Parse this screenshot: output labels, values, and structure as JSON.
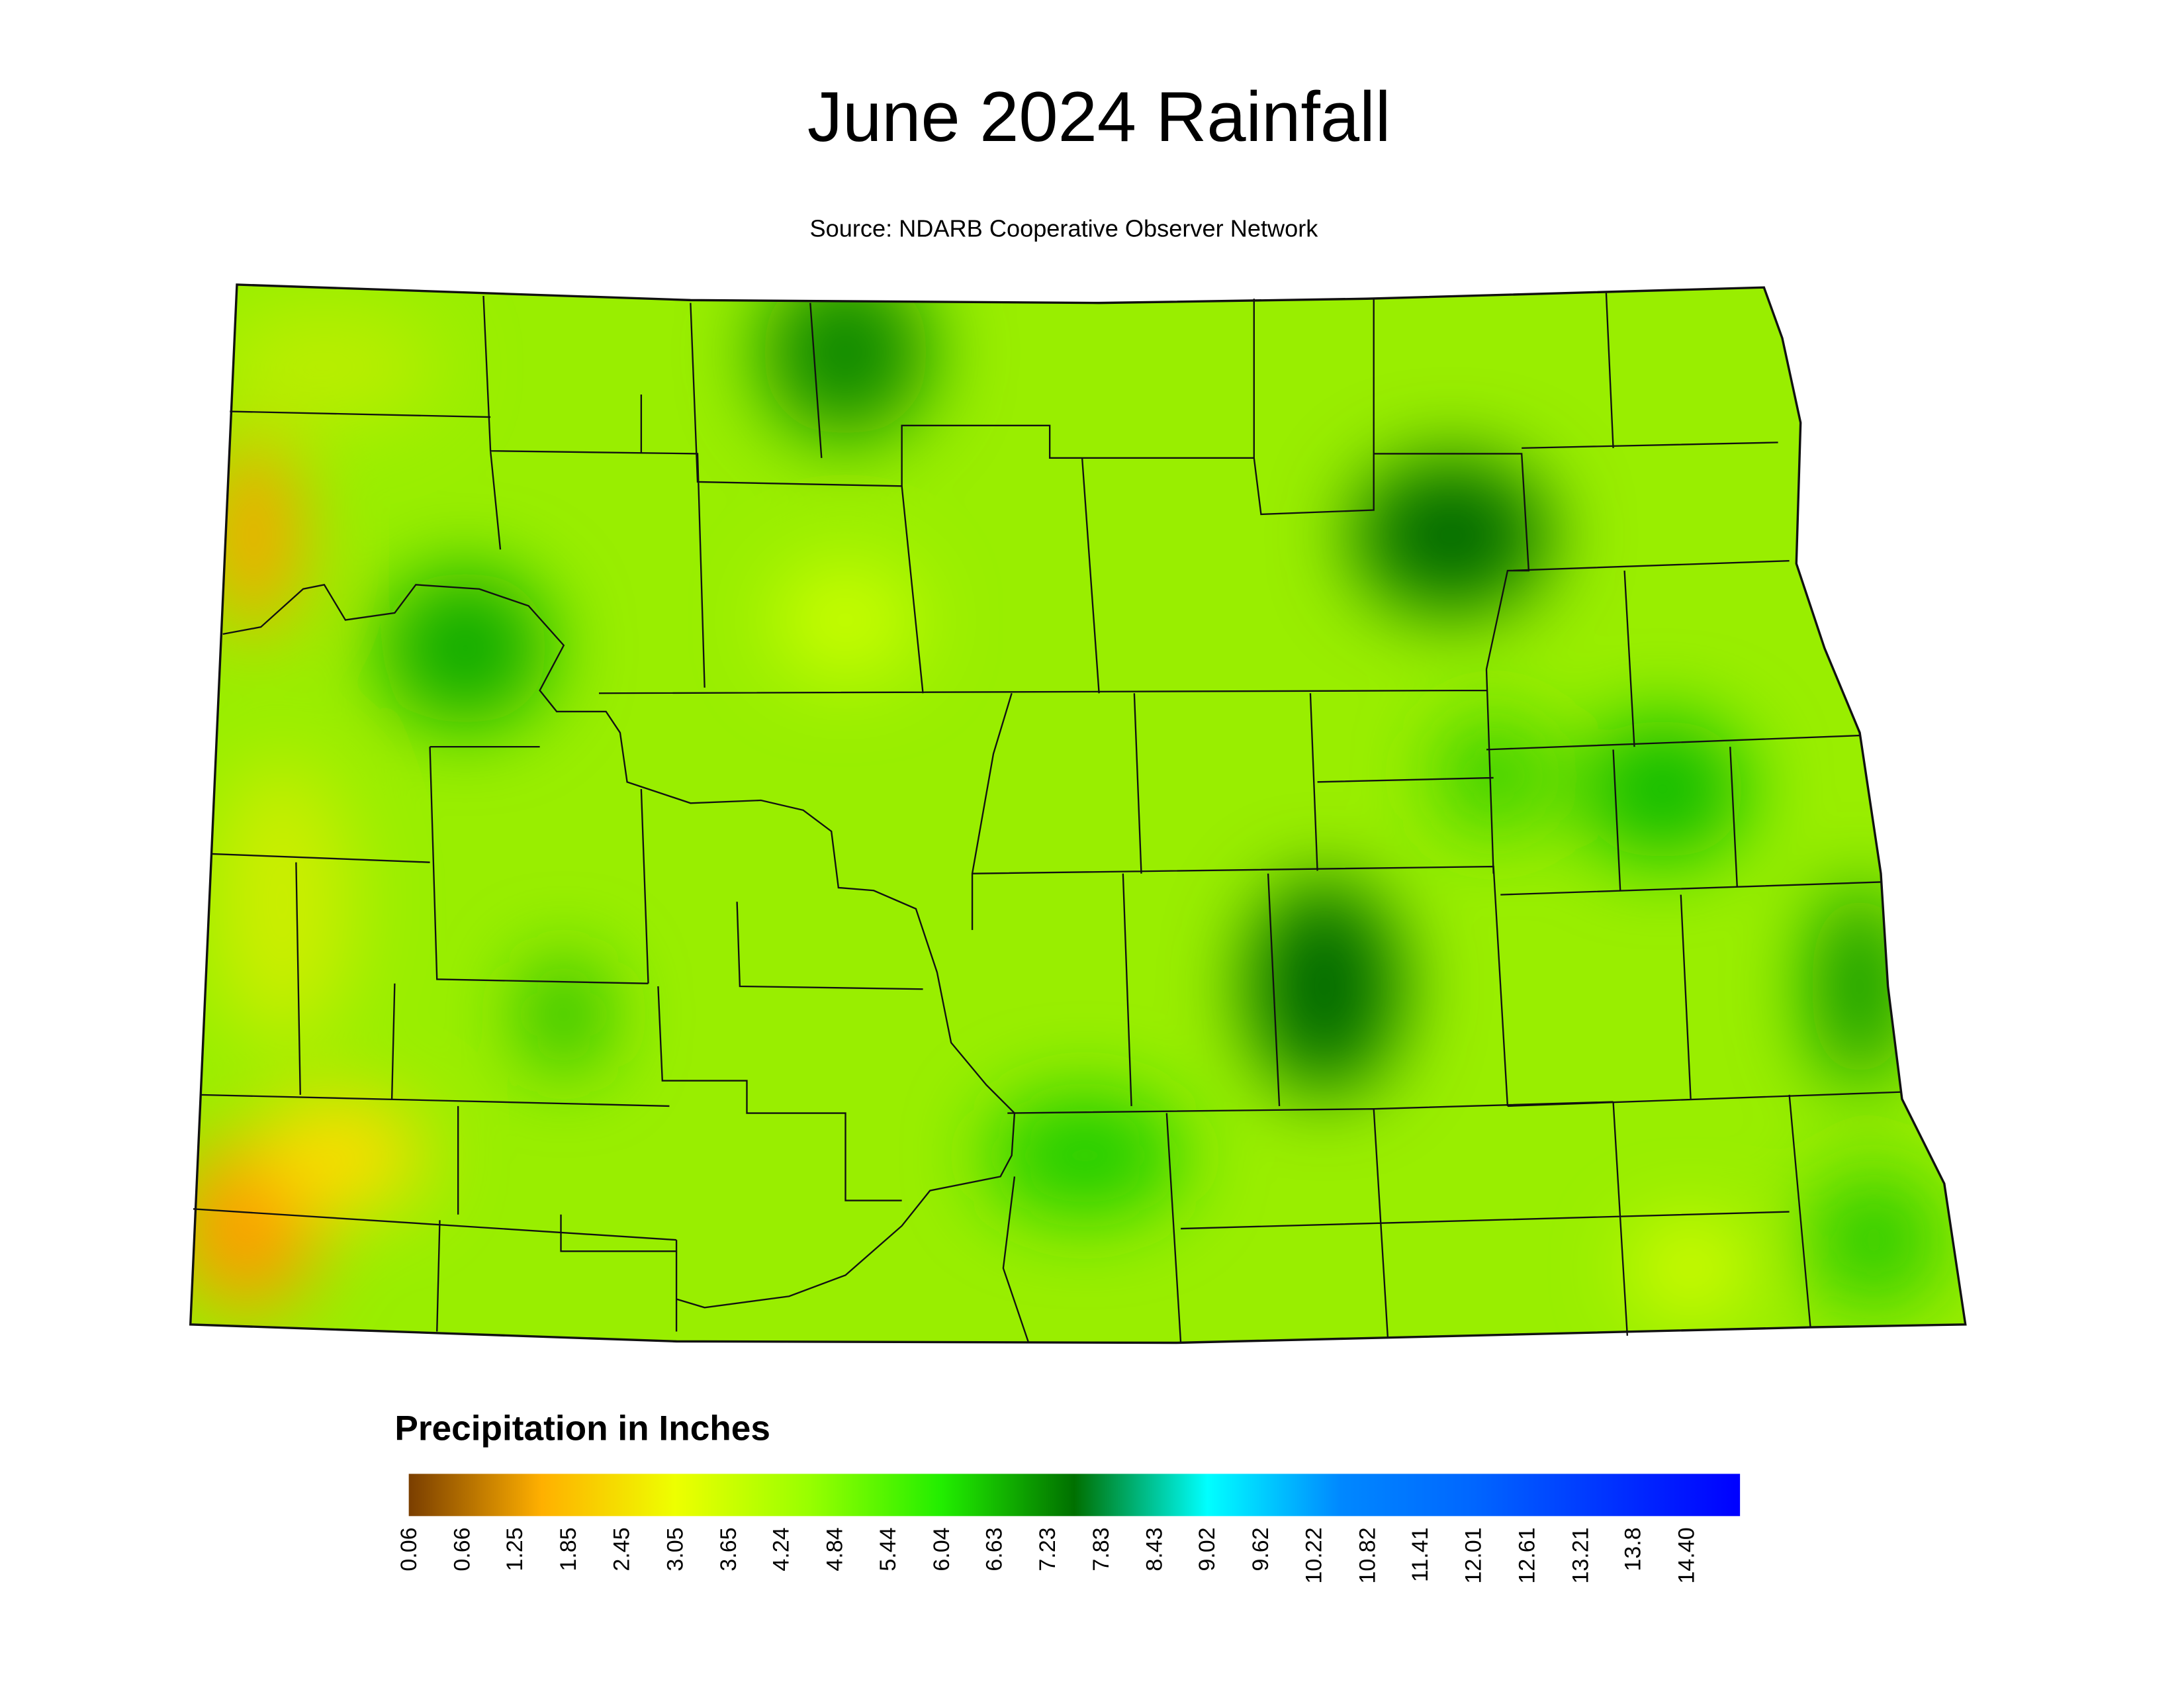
{
  "title": "June 2024 Rainfall",
  "subtitle": "Source: NDARB Cooperative Observer Network",
  "legend": {
    "title": "Precipitation in Inches",
    "range": [
      0.06,
      15.0
    ],
    "colors": [
      "#7a3e00",
      "#ffb000",
      "#eeff00",
      "#99ff00",
      "#22ee00",
      "#007000",
      "#00ffff",
      "#0088ff",
      "#0066ff",
      "#0033ff",
      "#0000ff"
    ],
    "ticks": [
      0.06,
      0.66,
      1.25,
      1.85,
      2.45,
      3.05,
      3.65,
      4.24,
      4.84,
      5.44,
      6.04,
      6.63,
      7.23,
      7.83,
      8.43,
      9.02,
      9.62,
      10.22,
      10.82,
      11.41,
      12.01,
      12.61,
      13.21,
      13.8,
      {
        "value": 14.4,
        "label": "14.40"
      }
    ]
  }
}
